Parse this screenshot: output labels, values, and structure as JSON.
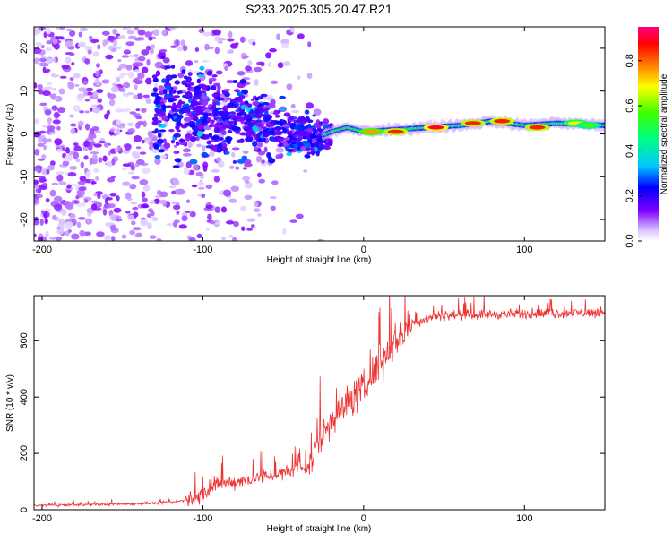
{
  "title": "S233.2025.305.20.47.R21",
  "chart_data": [
    {
      "type": "heatmap",
      "name": "spectrogram",
      "xlabel": "Height of straight line (km)",
      "ylabel": "Frequency (Hz)",
      "xlim": [
        -205,
        150
      ],
      "ylim": [
        -25,
        25
      ],
      "xticks": [
        -200,
        -100,
        0,
        100
      ],
      "yticks": [
        -20,
        -10,
        0,
        10,
        20
      ],
      "colorbar": {
        "label": "Normalized spectral amplitude",
        "range": [
          0.0,
          0.95
        ],
        "ticks": [
          0.0,
          0.2,
          0.4,
          0.6,
          0.8
        ],
        "tick_labels": [
          "0.0",
          "0.2",
          "0.4",
          "0.6",
          "0.8"
        ]
      },
      "ridge": [
        {
          "x": -120,
          "f": 5
        },
        {
          "x": -100,
          "f": 5
        },
        {
          "x": -80,
          "f": 3
        },
        {
          "x": -60,
          "f": 2
        },
        {
          "x": -40,
          "f": 0
        },
        {
          "x": -30,
          "f": -1
        },
        {
          "x": -20,
          "f": 0.5
        },
        {
          "x": -10,
          "f": 1.5
        },
        {
          "x": 0,
          "f": 0.5
        },
        {
          "x": 20,
          "f": 1
        },
        {
          "x": 40,
          "f": 1.5
        },
        {
          "x": 60,
          "f": 2
        },
        {
          "x": 80,
          "f": 3
        },
        {
          "x": 100,
          "f": 2
        },
        {
          "x": 120,
          "f": 2.5
        },
        {
          "x": 150,
          "f": 2
        }
      ],
      "hotspots": [
        {
          "x": 45,
          "f": 1.5,
          "v": 0.95
        },
        {
          "x": 68,
          "f": 2.5,
          "v": 0.9
        },
        {
          "x": 86,
          "f": 3,
          "v": 0.9
        },
        {
          "x": 108,
          "f": 1.5,
          "v": 0.9
        },
        {
          "x": 132,
          "f": 2.5,
          "v": 0.7
        },
        {
          "x": 140,
          "f": 2,
          "v": 0.6
        },
        {
          "x": 20,
          "f": 0.5,
          "v": 0.9
        },
        {
          "x": 5,
          "f": 0.5,
          "v": 0.8
        }
      ]
    },
    {
      "type": "line",
      "name": "snr",
      "xlabel": "Height of straight line (km)",
      "ylabel": "SNR (10 * v/v)",
      "xlim": [
        -205,
        150
      ],
      "ylim": [
        0,
        760
      ],
      "xticks": [
        -200,
        -100,
        0,
        100
      ],
      "yticks": [
        0,
        200,
        400,
        600
      ],
      "color": "#ee3333",
      "trend": [
        {
          "x": -205,
          "y": 15
        },
        {
          "x": -150,
          "y": 20
        },
        {
          "x": -120,
          "y": 25
        },
        {
          "x": -105,
          "y": 40
        },
        {
          "x": -90,
          "y": 90
        },
        {
          "x": -70,
          "y": 110
        },
        {
          "x": -50,
          "y": 130
        },
        {
          "x": -35,
          "y": 150
        },
        {
          "x": -28,
          "y": 240
        },
        {
          "x": -20,
          "y": 320
        },
        {
          "x": -10,
          "y": 380
        },
        {
          "x": 0,
          "y": 430
        },
        {
          "x": 10,
          "y": 520
        },
        {
          "x": 20,
          "y": 600
        },
        {
          "x": 30,
          "y": 660
        },
        {
          "x": 45,
          "y": 690
        },
        {
          "x": 150,
          "y": 700
        }
      ]
    }
  ]
}
